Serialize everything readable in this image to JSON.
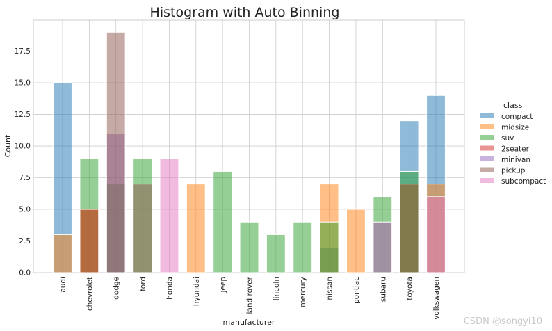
{
  "chart_data": {
    "type": "bar",
    "title": "Histogram with Auto Binning",
    "xlabel": "manufacturer",
    "ylabel": "Count",
    "ylim": [
      0,
      20
    ],
    "yticks": [
      "0.0",
      "2.5",
      "5.0",
      "7.5",
      "10.0",
      "12.5",
      "15.0",
      "17.5"
    ],
    "grid": true,
    "legend_title": "class",
    "legend_position": "right",
    "categories": [
      "audi",
      "chevrolet",
      "dodge",
      "ford",
      "honda",
      "hyundai",
      "jeep",
      "land rover",
      "lincoln",
      "mercury",
      "nissan",
      "pontiac",
      "subaru",
      "toyota",
      "volkswagen"
    ],
    "series": [
      {
        "name": "compact",
        "color": "#1f77b4",
        "values": [
          15,
          0,
          0,
          0,
          0,
          0,
          0,
          0,
          0,
          0,
          2,
          0,
          4,
          12,
          14
        ]
      },
      {
        "name": "midsize",
        "color": "#ff7f0e",
        "values": [
          3,
          5,
          0,
          0,
          0,
          7,
          0,
          0,
          0,
          0,
          7,
          5,
          0,
          7,
          7
        ]
      },
      {
        "name": "suv",
        "color": "#2ca02c",
        "values": [
          0,
          9,
          7,
          9,
          0,
          0,
          8,
          4,
          3,
          4,
          4,
          0,
          6,
          8,
          0
        ]
      },
      {
        "name": "2seater",
        "color": "#d62728",
        "values": [
          0,
          5,
          0,
          0,
          0,
          0,
          0,
          0,
          0,
          0,
          0,
          0,
          0,
          0,
          0
        ]
      },
      {
        "name": "minivan",
        "color": "#9467bd",
        "values": [
          0,
          0,
          11,
          0,
          0,
          0,
          0,
          0,
          0,
          0,
          0,
          0,
          0,
          0,
          0
        ]
      },
      {
        "name": "pickup",
        "color": "#8c564b",
        "values": [
          0,
          0,
          19,
          7,
          0,
          0,
          0,
          0,
          0,
          0,
          0,
          0,
          0,
          7,
          0
        ]
      },
      {
        "name": "subcompact",
        "color": "#e377c2",
        "values": [
          0,
          0,
          0,
          0,
          9,
          0,
          0,
          0,
          0,
          0,
          0,
          0,
          4,
          0,
          6
        ]
      }
    ]
  },
  "watermark": "CSDN @songyi10"
}
